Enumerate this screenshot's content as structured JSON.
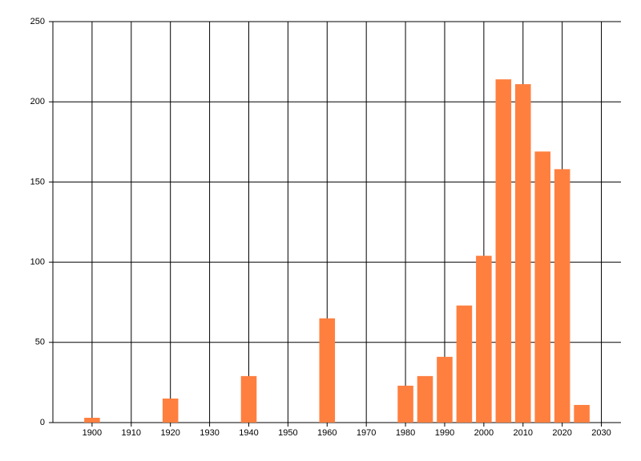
{
  "chart_data": {
    "type": "bar",
    "x": [
      1900,
      1920,
      1940,
      1960,
      1980,
      1985,
      1990,
      1995,
      2000,
      2005,
      2010,
      2015,
      2020,
      2025
    ],
    "values": [
      3,
      15,
      29,
      65,
      23,
      29,
      41,
      73,
      104,
      214,
      211,
      169,
      158,
      11
    ],
    "color": "#ff7f3f",
    "xlim": [
      1890,
      2035
    ],
    "xticks": [
      1900,
      1910,
      1920,
      1930,
      1940,
      1950,
      1960,
      1970,
      1980,
      1990,
      2000,
      2010,
      2020,
      2030
    ],
    "ylim": [
      0,
      250
    ],
    "yticks": [
      0,
      50,
      100,
      150,
      200,
      250
    ],
    "grid": true
  }
}
